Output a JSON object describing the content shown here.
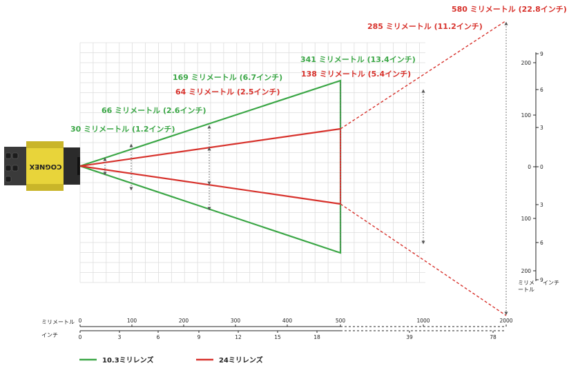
{
  "colors": {
    "lens_10_3": "#3aa645",
    "lens_24": "#d7312b",
    "grid": "#dddddd",
    "axis": "#222222"
  },
  "camera": {
    "brand_text": "COGNEX"
  },
  "labels_green": [
    "30 ミリメートル (1.2インチ)",
    "66 ミリメートル (2.6インチ)",
    "169 ミリメートル (6.7インチ)",
    "341 ミリメートル (13.4インチ)"
  ],
  "labels_red": [
    "64 ミリメートル (2.5インチ)",
    "138 ミリメートル (5.4インチ)",
    "285 ミリメートル (11.2インチ)",
    "580 ミリメートル (22.8インチ)"
  ],
  "bottom_axis": {
    "mm_label": "ミリメートル",
    "inch_label": "インチ",
    "mm_ticks": [
      "0",
      "100",
      "200",
      "300",
      "400",
      "500",
      "1000",
      "2000"
    ],
    "inch_ticks": [
      "0",
      "3",
      "6",
      "9",
      "12",
      "15",
      "18",
      "39",
      "78"
    ]
  },
  "right_axis": {
    "mm_label": "ミリメ\nートル",
    "inch_label": "インチ",
    "mm_ticks": [
      "200",
      "100",
      "0",
      "100",
      "200"
    ],
    "inch_ticks": [
      "9",
      "6",
      "3",
      "0",
      "3",
      "6",
      "9"
    ]
  },
  "legend": [
    {
      "label": "10.3ミリレンズ",
      "color": "#3aa645"
    },
    {
      "label": "24ミリレンズ",
      "color": "#d7312b"
    }
  ]
}
